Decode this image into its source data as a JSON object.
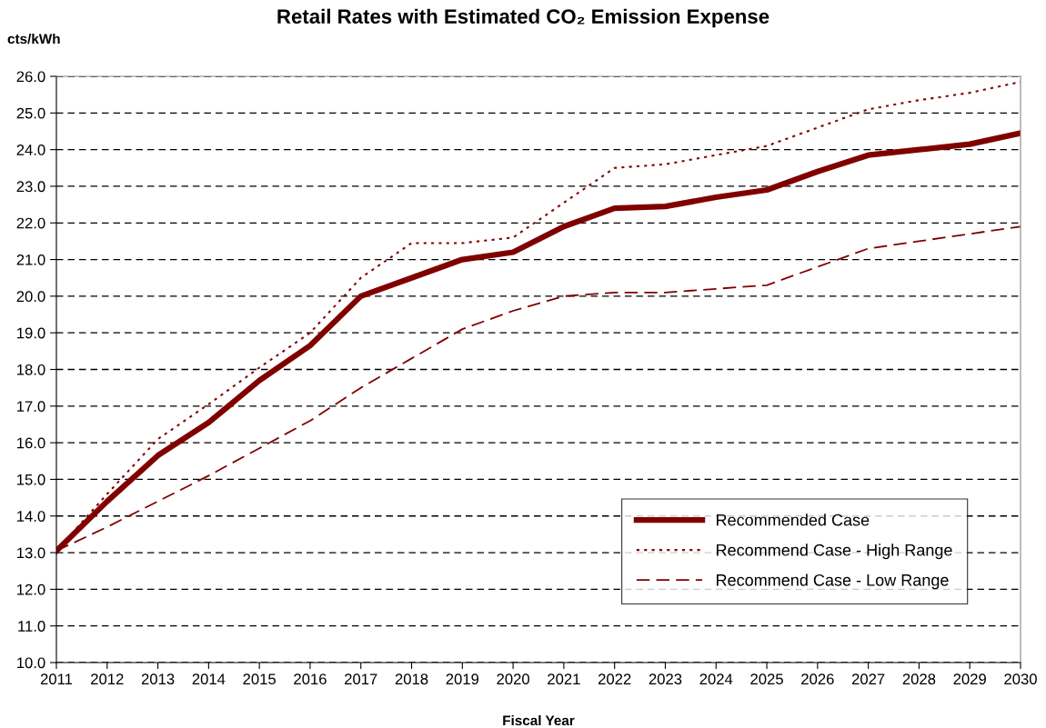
{
  "chart_data": {
    "type": "line",
    "title": "Retail Rates with Estimated CO₂ Emission Expense",
    "xlabel": "Fiscal Year",
    "ylabel": "cts/kWh",
    "x": [
      2011,
      2012,
      2013,
      2014,
      2015,
      2016,
      2017,
      2018,
      2019,
      2020,
      2021,
      2022,
      2023,
      2024,
      2025,
      2026,
      2027,
      2028,
      2029,
      2030
    ],
    "series": [
      {
        "name": "Recommended Case",
        "color": "#800000",
        "line_style": "solid",
        "values": [
          13.05,
          14.4,
          15.65,
          16.55,
          17.7,
          18.65,
          20.0,
          20.5,
          21.0,
          21.2,
          21.9,
          22.4,
          22.45,
          22.7,
          22.9,
          23.4,
          23.85,
          24.0,
          24.15,
          24.45
        ]
      },
      {
        "name": "Recommend Case - High Range",
        "color": "#800000",
        "line_style": "dotted",
        "values": [
          13.05,
          14.6,
          16.1,
          17.05,
          18.05,
          19.0,
          20.5,
          21.45,
          21.45,
          21.6,
          22.55,
          23.5,
          23.6,
          23.85,
          24.1,
          24.6,
          25.1,
          25.35,
          25.55,
          25.85
        ]
      },
      {
        "name": "Recommend Case - Low Range",
        "color": "#800000",
        "line_style": "dashed",
        "values": [
          13.05,
          13.7,
          14.4,
          15.1,
          15.85,
          16.6,
          17.5,
          18.3,
          19.1,
          19.6,
          20.0,
          20.1,
          20.1,
          20.2,
          20.3,
          20.8,
          21.3,
          21.5,
          21.7,
          21.9
        ]
      }
    ],
    "xlim": [
      2011,
      2030
    ],
    "xticks": [
      2011,
      2012,
      2013,
      2014,
      2015,
      2016,
      2017,
      2018,
      2019,
      2020,
      2021,
      2022,
      2023,
      2024,
      2025,
      2026,
      2027,
      2028,
      2029,
      2030
    ],
    "ylim": [
      10,
      26
    ],
    "yticks": [
      {
        "value": 10,
        "label": "10.0"
      },
      {
        "value": 11,
        "label": "11.0"
      },
      {
        "value": 12,
        "label": "12.0"
      },
      {
        "value": 13,
        "label": "13.0"
      },
      {
        "value": 14,
        "label": "14.0"
      },
      {
        "value": 15,
        "label": "15.0"
      },
      {
        "value": 16,
        "label": "16.0"
      },
      {
        "value": 17,
        "label": "17.0"
      },
      {
        "value": 18,
        "label": "18.0"
      },
      {
        "value": 19,
        "label": "19.0"
      },
      {
        "value": 20,
        "label": "20.0"
      },
      {
        "value": 21,
        "label": "21.0"
      },
      {
        "value": 22,
        "label": "22.0"
      },
      {
        "value": 23,
        "label": "23.0"
      },
      {
        "value": 24,
        "label": "24.0"
      },
      {
        "value": 25,
        "label": "25.0"
      },
      {
        "value": 26,
        "label": "26.0"
      }
    ],
    "grid": "y",
    "legend": "bottom right",
    "marker": "none"
  }
}
